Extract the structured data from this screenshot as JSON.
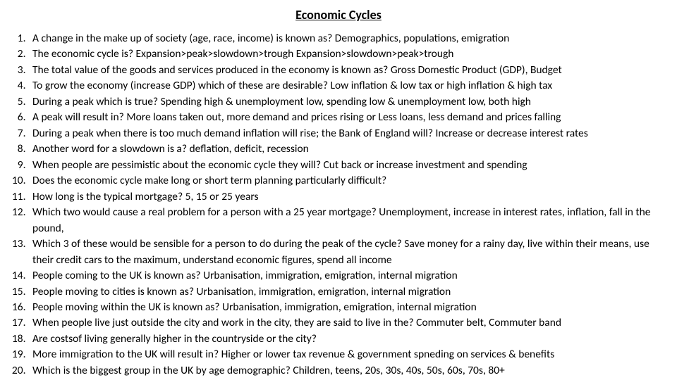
{
  "title": "Economic Cycles",
  "title_fontsize": 18,
  "body_fontsize": 15.5,
  "line_height": 1.45,
  "text_color": "#000000",
  "background_color": "#ffffff",
  "font_family": "Calibri, Arial, sans-serif",
  "items": [
    "A change in the make up of society (age, race, income)  is known as? Demographics, populations, emigration",
    "The economic cycle is?  Expansion>peak>slowdown>trough   Expansion>slowdown>peak>trough",
    "The total value of the goods and services produced in the economy is known as?  Gross Domestic Product (GDP), Budget",
    "To grow the economy (increase GDP) which of these are desirable? Low inflation & low tax or high inflation & high tax",
    "During a peak which is true? Spending high & unemployment low, spending low & unemployment low, both high",
    "A peak will result in? More loans taken out, more demand and prices rising or Less loans, less demand and prices falling",
    "During a peak when there is too much demand inflation will rise; the Bank of England will? Increase or decrease interest rates",
    "Another word for a slowdown is a? deflation, deficit, recession",
    "When people are pessimistic about the economic cycle they will? Cut back or increase investment and spending",
    "Does the economic cycle make long or short term planning particularly difficult?",
    "How long is the typical mortgage? 5, 15 or 25 years",
    "Which two would cause a real problem for a person with a 25 year mortgage? Unemployment, increase in interest rates, inflation, fall in the pound,",
    "Which 3 of these would be sensible for a person to do during the peak of the cycle? Save money for a rainy day, live within their means, use their credit cars to the maximum, understand economic figures, spend all income",
    "People coming to the UK is known as? Urbanisation, immigration, emigration, internal migration",
    "People moving to cities is known as? Urbanisation, immigration, emigration, internal migration",
    "People moving within the UK is known as? Urbanisation, immigration, emigration, internal migration",
    "When people live just outside the city and work in the city, they are said to live in the? Commuter belt, Commuter band",
    "Are costsof living generally higher in the countryside or the city?",
    "More immigration to the UK will result in? Higher or lower tax revenue & government spneding on services & benefits",
    "Which is the biggest group in the UK by age demographic? Children, teens, 20s, 30s, 40s, 50s, 60s, 70s, 80+"
  ]
}
